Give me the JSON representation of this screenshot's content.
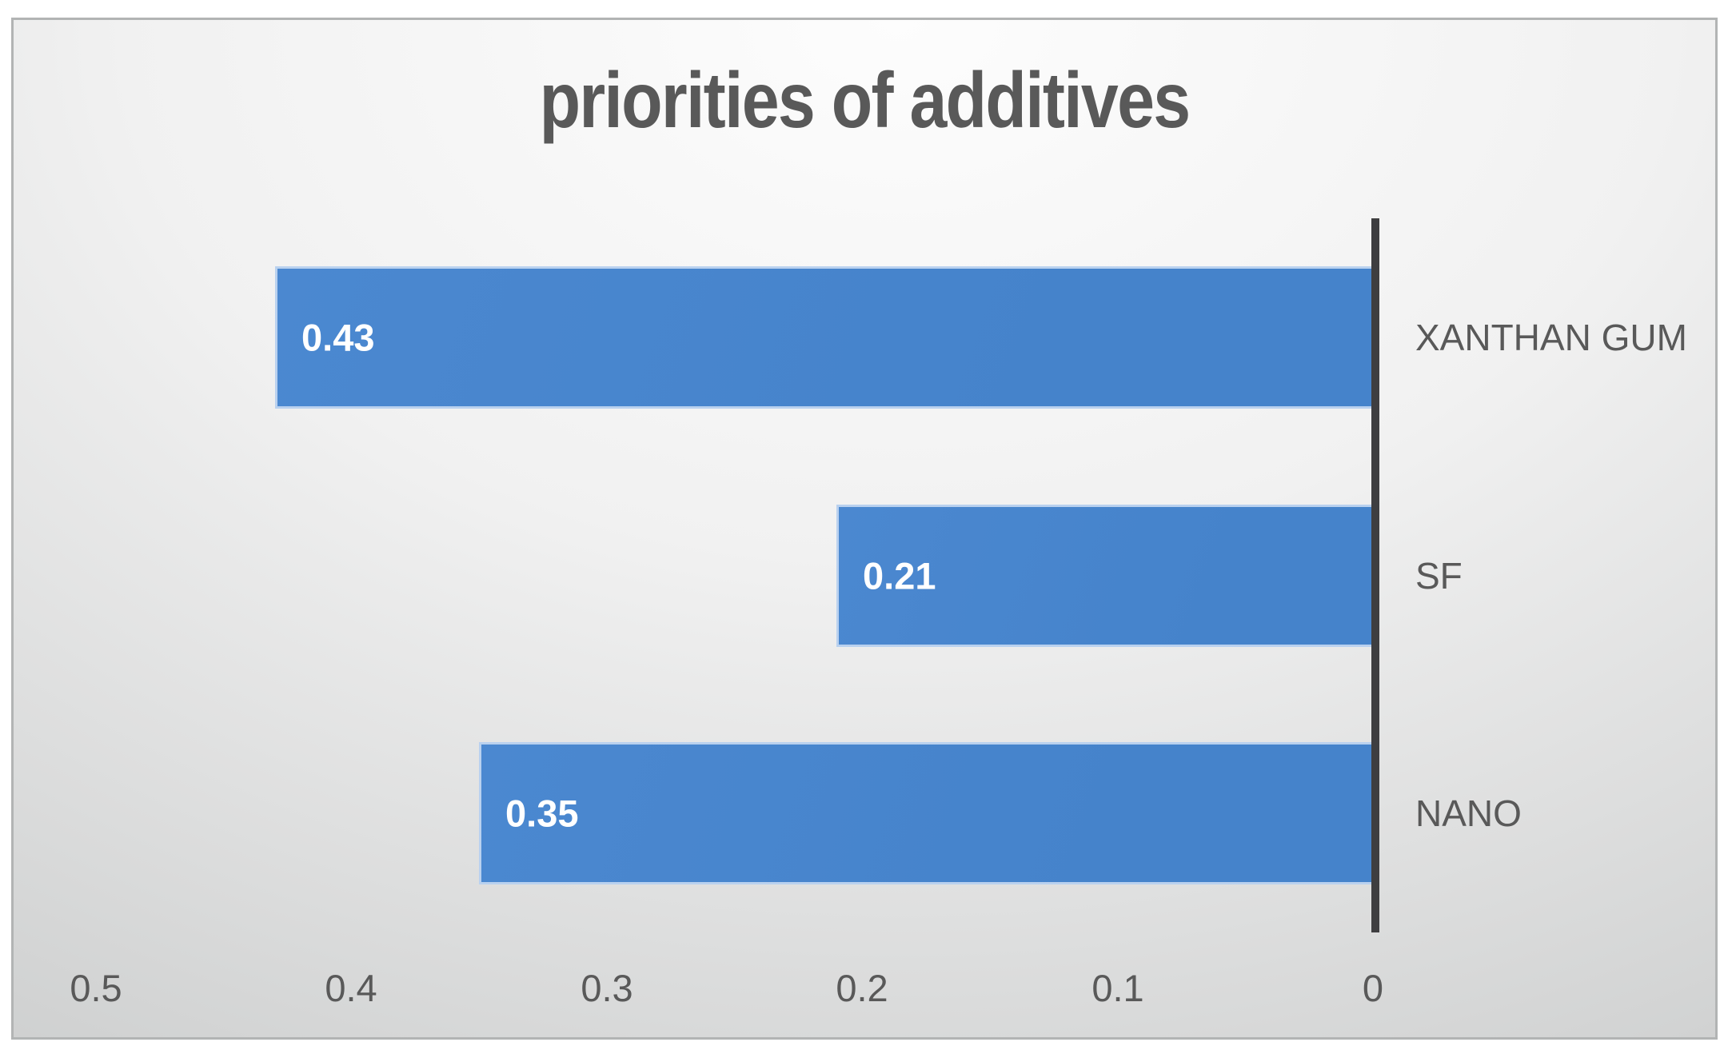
{
  "chart_data": {
    "type": "bar",
    "orientation": "horizontal",
    "axis_reversed": true,
    "title": "priorities of additives",
    "categories": [
      "XANTHAN GUM",
      "SF",
      "NANO"
    ],
    "values": [
      0.43,
      0.21,
      0.35
    ],
    "data_labels": [
      "0.43",
      "0.21",
      "0.35"
    ],
    "x_ticks": [
      0.5,
      0.4,
      0.3,
      0.2,
      0.1,
      0
    ],
    "x_tick_labels": [
      "0.5",
      "0.4",
      "0.3",
      "0.2",
      "0.1",
      "0"
    ],
    "xlim": [
      0.5,
      0
    ],
    "xlabel": "",
    "ylabel": "",
    "grid": false,
    "legend": "none",
    "colors": {
      "bar": "#4583cb",
      "bar_light": "#4b88d0",
      "bar_border": "#b9d1ef",
      "axis_line": "#3e3e40",
      "text_label": "#595959",
      "data_label": "#ffffff",
      "frame_border": "#b2b4b4"
    }
  }
}
